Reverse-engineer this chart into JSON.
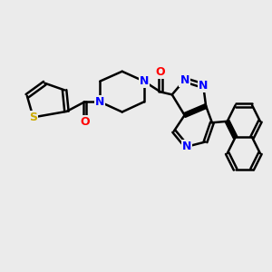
{
  "background_color": "#ebebeb",
  "bond_color": "#000000",
  "bond_width": 1.8,
  "atom_colors": {
    "N": "#0000ff",
    "O": "#ff0000",
    "S": "#ccaa00",
    "C": "#000000"
  },
  "font_size": 8.5,
  "fig_width": 3.0,
  "fig_height": 3.0,
  "dpi": 100,
  "xlim": [
    0,
    10
  ],
  "ylim": [
    0,
    10
  ]
}
